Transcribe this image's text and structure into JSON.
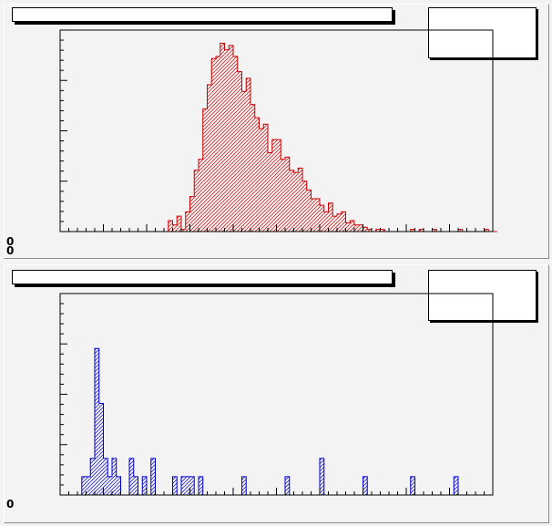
{
  "colors": {
    "top_line": "#cc0000",
    "bottom_line": "#0000cc",
    "frame": "#000000"
  },
  "pads": [
    {
      "title": "",
      "stats_title": "",
      "y_tick_labels": [
        "0",
        "0"
      ]
    },
    {
      "title": "",
      "stats_title": "",
      "y_tick_labels": [
        "0"
      ]
    }
  ],
  "chart_data": [
    {
      "type": "bar",
      "title": "",
      "xlabel": "",
      "ylabel": "",
      "xlim": [
        0,
        100
      ],
      "ylim": [
        0,
        92
      ],
      "bin_width": 1,
      "fill": "hatched",
      "series": [
        {
          "values": [
            0,
            0,
            0,
            0,
            0,
            0,
            0,
            0,
            0,
            0,
            0,
            0,
            0,
            0,
            0,
            0,
            0,
            0,
            0,
            0,
            0,
            0,
            0,
            0,
            0,
            5,
            3,
            7,
            1,
            9,
            16,
            28,
            33,
            56,
            67,
            79,
            80,
            86,
            83,
            85,
            80,
            73,
            64,
            70,
            58,
            52,
            47,
            49,
            36,
            42,
            42,
            33,
            34,
            28,
            27,
            29,
            23,
            19,
            15,
            15,
            12,
            9,
            13,
            7,
            8,
            9,
            4,
            5,
            3,
            3,
            2,
            1,
            0,
            1,
            1,
            0,
            0,
            0,
            0,
            0,
            0,
            1,
            0,
            1,
            0,
            0,
            1,
            0,
            0,
            0,
            0,
            0,
            1,
            0,
            0,
            0,
            0,
            0,
            1,
            0,
            0
          ]
        }
      ]
    },
    {
      "type": "bar",
      "title": "",
      "xlabel": "",
      "ylabel": "",
      "xlim": [
        0,
        100
      ],
      "ylim": [
        0,
        11
      ],
      "bin_width": 1,
      "fill": "hatched",
      "series": [
        {
          "values": [
            0,
            0,
            0,
            0,
            0,
            1,
            1,
            2,
            8,
            5,
            2,
            1,
            2,
            1,
            0,
            0,
            2,
            1,
            0,
            1,
            0,
            2,
            0,
            0,
            0,
            0,
            1,
            0,
            1,
            1,
            1,
            0,
            1,
            0,
            0,
            0,
            0,
            0,
            0,
            0,
            0,
            0,
            1,
            0,
            0,
            0,
            0,
            0,
            0,
            0,
            0,
            0,
            1,
            0,
            0,
            0,
            0,
            0,
            0,
            0,
            2,
            0,
            0,
            0,
            0,
            0,
            0,
            0,
            0,
            0,
            1,
            0,
            0,
            0,
            0,
            0,
            0,
            0,
            0,
            0,
            0,
            1,
            0,
            0,
            0,
            0,
            0,
            0,
            0,
            0,
            0,
            1,
            0,
            0,
            0,
            0,
            0,
            0,
            0,
            0
          ]
        }
      ]
    }
  ]
}
